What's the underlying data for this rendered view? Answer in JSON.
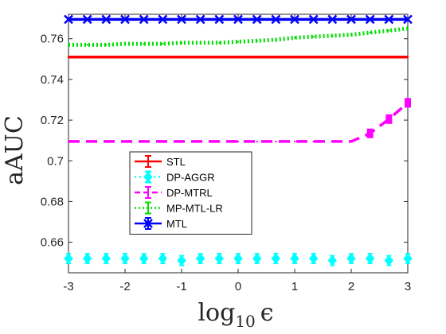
{
  "chart_data": {
    "type": "line",
    "xlabel_base": "log",
    "xlabel_sub": "10",
    "xlabel_var": "ϵ",
    "ylabel": "aAUC",
    "xlim": [
      -3,
      3
    ],
    "ylim": [
      0.645,
      0.772
    ],
    "xticks": [
      -3,
      -2,
      -1,
      0,
      1,
      2,
      3
    ],
    "xtick_labels": [
      "-3",
      "-2",
      "-1",
      "0",
      "1",
      "2",
      "3"
    ],
    "yticks": [
      0.66,
      0.68,
      0.7,
      0.72,
      0.74,
      0.76
    ],
    "ytick_labels": [
      "0.66",
      "0.68",
      "0.7",
      "0.72",
      "0.74",
      "0.76"
    ],
    "grid": false,
    "legend_position": "lower-left",
    "x": [
      -3,
      -2.6667,
      -2.3333,
      -2,
      -1.6667,
      -1.3333,
      -1,
      -0.6667,
      -0.3333,
      0,
      0.3333,
      0.6667,
      1,
      1.3333,
      1.6667,
      2,
      2.3333,
      2.6667,
      3
    ],
    "series": [
      {
        "name": "STL",
        "color": "#ff0000",
        "dash": "",
        "marker": "none",
        "values": [
          0.751,
          0.751,
          0.751,
          0.751,
          0.751,
          0.751,
          0.751,
          0.751,
          0.751,
          0.751,
          0.751,
          0.751,
          0.751,
          0.751,
          0.751,
          0.751,
          0.751,
          0.751,
          0.751
        ]
      },
      {
        "name": "DP-AGGR",
        "color": "#00ffff",
        "dash": "2 6",
        "marker": "diamond",
        "values": [
          0.652,
          0.652,
          0.652,
          0.652,
          0.652,
          0.652,
          0.651,
          0.652,
          0.652,
          0.652,
          0.652,
          0.652,
          0.652,
          0.652,
          0.651,
          0.652,
          0.652,
          0.651,
          0.652
        ]
      },
      {
        "name": "DP-MTRL",
        "color": "#ff00ff",
        "dash": "14 8",
        "marker": "none",
        "values": [
          0.7095,
          0.7095,
          0.7095,
          0.7095,
          0.7095,
          0.7095,
          0.7095,
          0.7095,
          0.7095,
          0.7095,
          0.7095,
          0.7095,
          0.7095,
          0.7095,
          0.7095,
          0.7095,
          0.7135,
          0.7205,
          0.7285
        ]
      },
      {
        "name": "MP-MTL-LR",
        "color": "#00e000",
        "dash": "2 3",
        "marker": "none",
        "values": [
          0.757,
          0.757,
          0.757,
          0.7575,
          0.7575,
          0.7575,
          0.758,
          0.758,
          0.758,
          0.7585,
          0.759,
          0.7595,
          0.7605,
          0.761,
          0.7615,
          0.762,
          0.763,
          0.764,
          0.765
        ]
      },
      {
        "name": "MTL",
        "color": "#0000ff",
        "dash": "",
        "marker": "x",
        "values": [
          0.7695,
          0.7695,
          0.7695,
          0.7695,
          0.7695,
          0.7695,
          0.7695,
          0.7695,
          0.7695,
          0.7695,
          0.7695,
          0.7695,
          0.7695,
          0.7695,
          0.7695,
          0.7695,
          0.7695,
          0.7695,
          0.7695
        ]
      }
    ]
  }
}
